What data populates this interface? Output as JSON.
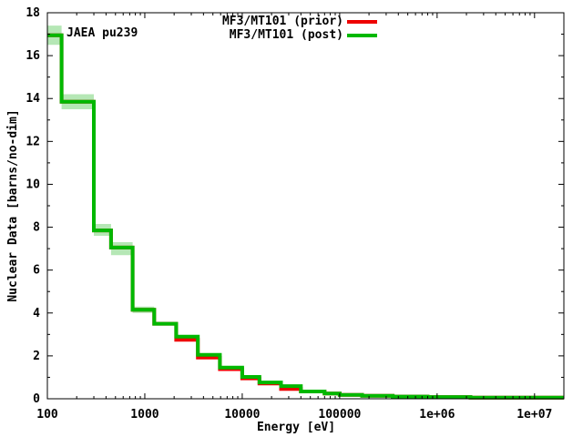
{
  "chart_data": {
    "type": "line",
    "subtype": "step",
    "title": "",
    "xlabel": "Energy [eV]",
    "ylabel": "Nuclear Data [barns/no-dim]",
    "annotation": "JAEA pu239",
    "x_scale": "log",
    "y_scale": "linear",
    "xlim": [
      100,
      20000000
    ],
    "ylim": [
      0,
      18
    ],
    "grid": false,
    "legend_position": "top-center-right-inside",
    "x_ticks": [
      {
        "value": 100,
        "label": "100"
      },
      {
        "value": 1000,
        "label": "1000"
      },
      {
        "value": 10000,
        "label": "10000"
      },
      {
        "value": 100000,
        "label": "100000"
      },
      {
        "value": 1000000,
        "label": "1e+06"
      },
      {
        "value": 10000000,
        "label": "1e+07"
      }
    ],
    "y_ticks": [
      {
        "value": 0,
        "label": "0"
      },
      {
        "value": 2,
        "label": "2"
      },
      {
        "value": 4,
        "label": "4"
      },
      {
        "value": 6,
        "label": "6"
      },
      {
        "value": 8,
        "label": "8"
      },
      {
        "value": 10,
        "label": "10"
      },
      {
        "value": 12,
        "label": "12"
      },
      {
        "value": 14,
        "label": "14"
      },
      {
        "value": 16,
        "label": "16"
      },
      {
        "value": 18,
        "label": "18"
      }
    ],
    "colors": {
      "prior": "#ee0000",
      "post": "#00b800",
      "band": "#b5e7b5",
      "axis": "#000000",
      "background": "#ffffff"
    },
    "x_end": 20000000,
    "series": [
      {
        "name": "MF3/MT101 (prior)",
        "color_key": "prior",
        "steps": [
          [
            100,
            16.95
          ],
          [
            140,
            13.85
          ],
          [
            300,
            7.85
          ],
          [
            450,
            7.05
          ],
          [
            750,
            4.15
          ],
          [
            1250,
            3.5
          ],
          [
            2100,
            2.75
          ],
          [
            3500,
            1.92
          ],
          [
            5900,
            1.38
          ],
          [
            10000,
            0.95
          ],
          [
            15000,
            0.71
          ],
          [
            25000,
            0.46
          ],
          [
            40000,
            0.34
          ],
          [
            70000,
            0.24
          ],
          [
            100000,
            0.18
          ],
          [
            170000,
            0.14
          ],
          [
            350000,
            0.1
          ],
          [
            800000,
            0.08
          ],
          [
            2200000,
            0.05
          ]
        ]
      },
      {
        "name": "MF3/MT101 (post)",
        "color_key": "post",
        "steps": [
          [
            100,
            16.95
          ],
          [
            140,
            13.85
          ],
          [
            300,
            7.85
          ],
          [
            450,
            7.05
          ],
          [
            750,
            4.15
          ],
          [
            1250,
            3.5
          ],
          [
            2100,
            2.9
          ],
          [
            3500,
            2.05
          ],
          [
            5900,
            1.45
          ],
          [
            10000,
            1.02
          ],
          [
            15000,
            0.76
          ],
          [
            25000,
            0.59
          ],
          [
            40000,
            0.34
          ],
          [
            70000,
            0.24
          ],
          [
            100000,
            0.18
          ],
          [
            170000,
            0.14
          ],
          [
            350000,
            0.1
          ],
          [
            800000,
            0.08
          ],
          [
            2200000,
            0.05
          ]
        ]
      }
    ],
    "uncertainty_band": {
      "series": "MF3/MT101 (post)",
      "x_end": 1250,
      "steps": [
        [
          100,
          16.5,
          17.4
        ],
        [
          140,
          13.5,
          14.2
        ],
        [
          300,
          7.6,
          8.15
        ],
        [
          450,
          6.7,
          7.3
        ],
        [
          750,
          4.0,
          4.3
        ]
      ]
    }
  }
}
